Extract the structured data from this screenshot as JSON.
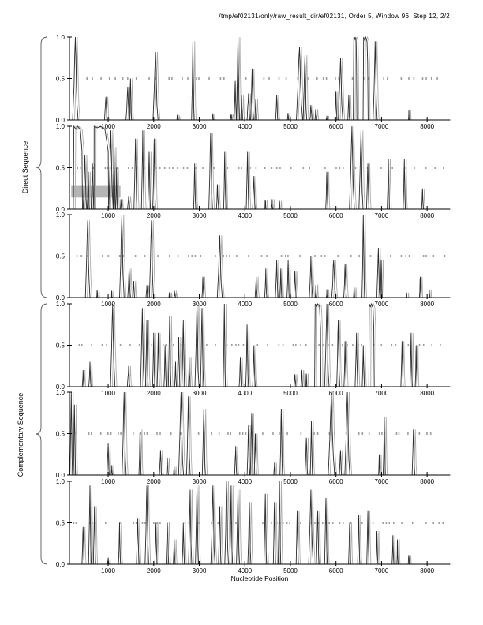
{
  "figure": {
    "title": "/tmp/ef02131/only/raw_result_dir/ef02131, Order 5, Window 96, Step 12, 2/2",
    "x_axis_label": "Nucleotide Position",
    "group_labels": [
      "Direct Sequence",
      "Complementary Sequence"
    ]
  },
  "chart_data": {
    "type": "line",
    "title": "/tmp/ef02131/only/raw_result_dir/ef02131, Order 5, Window 96, Step 12, 2/2",
    "xlabel": "Nucleotide Position",
    "ylabel": "",
    "xlim": [
      150,
      8500
    ],
    "ylim": [
      0,
      1
    ],
    "x_ticks": [
      1000,
      2000,
      3000,
      4000,
      5000,
      6000,
      7000,
      8000
    ],
    "y_ticks": [
      "1.0",
      "0.5",
      "0.0"
    ],
    "grid": false,
    "legend": "none",
    "midline": {
      "y": 0.5,
      "style": "short gray dashes",
      "color": "#9e9e9e"
    },
    "colors": {
      "curve": "#2b2b2b",
      "curve_echo": "#aeaeae",
      "spine": "#000000",
      "annotation_box": "#b5b5b5"
    },
    "annotations": [
      {
        "type": "box",
        "subplot_index": 1,
        "x0": 190,
        "x1": 1270,
        "y0": 0.14,
        "y1": 0.28,
        "fill": "#b5b5b5"
      }
    ],
    "note": "peaks are [center_nt, height_0to1, halfwidth_nt, plateau_flag(optional)]",
    "subplots": [
      {
        "name": "direct-frame-1",
        "group": "Direct Sequence",
        "seed": 11,
        "peaks": [
          [
            280,
            1.0,
            60
          ],
          [
            950,
            0.28,
            30
          ],
          [
            1430,
            0.4,
            40
          ],
          [
            1490,
            0.5,
            25
          ],
          [
            2040,
            0.82,
            55
          ],
          [
            2520,
            0.05,
            20
          ],
          [
            2860,
            0.95,
            30
          ],
          [
            3300,
            0.08,
            15
          ],
          [
            3700,
            0.06,
            15
          ],
          [
            3790,
            0.47,
            25
          ],
          [
            3850,
            1.0,
            35
          ],
          [
            3930,
            0.3,
            20
          ],
          [
            4080,
            0.32,
            30
          ],
          [
            4160,
            0.62,
            35
          ],
          [
            4240,
            0.25,
            20
          ],
          [
            4700,
            0.3,
            25
          ],
          [
            4950,
            0.06,
            15
          ],
          [
            5200,
            0.88,
            70
          ],
          [
            5320,
            0.78,
            40
          ],
          [
            5450,
            0.18,
            25
          ],
          [
            5560,
            0.12,
            20
          ],
          [
            5800,
            0.05,
            15
          ],
          [
            6000,
            0.35,
            25
          ],
          [
            6100,
            0.75,
            50
          ],
          [
            6280,
            0.3,
            20
          ],
          [
            6420,
            1.0,
            40,
            1
          ],
          [
            6650,
            1.0,
            55,
            1
          ],
          [
            6860,
            0.95,
            45
          ],
          [
            7600,
            0.12,
            10
          ]
        ]
      },
      {
        "name": "direct-frame-2",
        "group": "Direct Sequence",
        "seed": 22,
        "peaks": [
          [
            335,
            1.0,
            100,
            1
          ],
          [
            490,
            0.65,
            40
          ],
          [
            565,
            0.45,
            25
          ],
          [
            655,
            0.55,
            30
          ],
          [
            830,
            1.0,
            180,
            1
          ],
          [
            1060,
            0.95,
            50
          ],
          [
            1130,
            0.75,
            30
          ],
          [
            1185,
            0.5,
            20
          ],
          [
            1280,
            0.12,
            20
          ],
          [
            1450,
            0.15,
            25
          ],
          [
            1600,
            0.85,
            35
          ],
          [
            1760,
            0.95,
            30
          ],
          [
            1900,
            0.7,
            30
          ],
          [
            2010,
            0.85,
            30
          ],
          [
            2900,
            0.55,
            25
          ],
          [
            3250,
            0.92,
            40
          ],
          [
            3400,
            0.3,
            25
          ],
          [
            3560,
            0.7,
            25
          ],
          [
            4060,
            0.7,
            30
          ],
          [
            4200,
            0.4,
            30
          ],
          [
            4450,
            0.1,
            15
          ],
          [
            4600,
            0.12,
            15
          ],
          [
            4760,
            0.1,
            15
          ],
          [
            5800,
            0.45,
            25
          ],
          [
            6350,
            1.0,
            55
          ],
          [
            6550,
            0.95,
            45
          ],
          [
            6700,
            0.55,
            30
          ],
          [
            7150,
            0.6,
            25
          ],
          [
            7500,
            0.6,
            25
          ],
          [
            7900,
            0.25,
            20
          ]
        ]
      },
      {
        "name": "direct-frame-3",
        "group": "Direct Sequence",
        "seed": 33,
        "peaks": [
          [
            550,
            0.93,
            50
          ],
          [
            760,
            0.08,
            15
          ],
          [
            1080,
            0.07,
            15
          ],
          [
            1300,
            1.0,
            50
          ],
          [
            1460,
            0.35,
            30
          ],
          [
            1560,
            0.2,
            20
          ],
          [
            1850,
            0.15,
            20
          ],
          [
            1950,
            0.93,
            45
          ],
          [
            2350,
            0.05,
            15
          ],
          [
            2460,
            0.06,
            15
          ],
          [
            3080,
            0.25,
            20
          ],
          [
            3450,
            0.75,
            55
          ],
          [
            4250,
            0.25,
            25
          ],
          [
            4460,
            0.35,
            25
          ],
          [
            4700,
            0.45,
            30
          ],
          [
            4790,
            0.35,
            20
          ],
          [
            4950,
            0.45,
            25
          ],
          [
            5100,
            0.32,
            25
          ],
          [
            5450,
            0.5,
            35
          ],
          [
            5560,
            0.15,
            15
          ],
          [
            5800,
            0.1,
            15
          ],
          [
            5950,
            0.45,
            45
          ],
          [
            6200,
            0.4,
            30
          ],
          [
            6400,
            0.12,
            15
          ],
          [
            6600,
            1.0,
            30
          ],
          [
            6930,
            0.6,
            35
          ],
          [
            6995,
            0.45,
            20
          ],
          [
            7550,
            0.05,
            10
          ],
          [
            7850,
            0.25,
            20
          ],
          [
            8050,
            0.08,
            10
          ]
        ]
      },
      {
        "name": "complementary-frame-1",
        "group": "Complementary Sequence",
        "seed": 44,
        "peaks": [
          [
            450,
            0.2,
            20
          ],
          [
            600,
            0.3,
            25
          ],
          [
            1100,
            1.0,
            50
          ],
          [
            1450,
            0.25,
            30
          ],
          [
            1750,
            0.95,
            40
          ],
          [
            1850,
            0.8,
            30
          ],
          [
            2000,
            0.65,
            25
          ],
          [
            2100,
            0.65,
            25
          ],
          [
            2250,
            0.5,
            25
          ],
          [
            2350,
            0.85,
            30
          ],
          [
            2480,
            0.3,
            20
          ],
          [
            2550,
            0.6,
            25
          ],
          [
            2650,
            0.8,
            30
          ],
          [
            2780,
            0.35,
            20
          ],
          [
            2950,
            1.0,
            45
          ],
          [
            3060,
            0.95,
            35
          ],
          [
            3550,
            1.0,
            25
          ],
          [
            3900,
            0.35,
            25
          ],
          [
            4050,
            0.75,
            30
          ],
          [
            4200,
            0.5,
            30
          ],
          [
            5100,
            0.15,
            20
          ],
          [
            5250,
            0.2,
            20
          ],
          [
            5350,
            0.15,
            15
          ],
          [
            5600,
            1.0,
            70,
            1
          ],
          [
            5800,
            1.0,
            50
          ],
          [
            6050,
            0.8,
            35
          ],
          [
            6200,
            0.55,
            25
          ],
          [
            6450,
            0.65,
            30
          ],
          [
            6600,
            0.5,
            25
          ],
          [
            6780,
            1.0,
            60,
            1
          ],
          [
            7450,
            0.55,
            25
          ],
          [
            7650,
            0.65,
            25
          ],
          [
            7760,
            0.5,
            20
          ]
        ]
      },
      {
        "name": "complementary-frame-2",
        "group": "Complementary Sequence",
        "seed": 55,
        "peaks": [
          [
            190,
            1.0,
            30
          ],
          [
            260,
            0.85,
            25
          ],
          [
            1000,
            0.38,
            25
          ],
          [
            1080,
            0.12,
            15
          ],
          [
            1350,
            1.0,
            45
          ],
          [
            1700,
            0.55,
            25
          ],
          [
            2150,
            0.3,
            25
          ],
          [
            2300,
            0.2,
            20
          ],
          [
            2450,
            0.1,
            15
          ],
          [
            2600,
            1.0,
            55
          ],
          [
            2760,
            0.95,
            40
          ],
          [
            3100,
            0.8,
            35
          ],
          [
            3800,
            0.35,
            25
          ],
          [
            4080,
            0.6,
            30
          ],
          [
            4150,
            0.75,
            30
          ],
          [
            4230,
            0.5,
            25
          ],
          [
            4650,
            0.15,
            15
          ],
          [
            4800,
            0.8,
            30
          ],
          [
            5350,
            0.45,
            30
          ],
          [
            5460,
            0.65,
            25
          ],
          [
            5900,
            1.0,
            70
          ],
          [
            6100,
            0.3,
            25
          ],
          [
            6250,
            1.0,
            55
          ],
          [
            6950,
            0.25,
            15
          ],
          [
            7060,
            0.7,
            25
          ],
          [
            7700,
            0.55,
            30
          ]
        ]
      },
      {
        "name": "complementary-frame-3",
        "group": "Complementary Sequence",
        "seed": 66,
        "peaks": [
          [
            450,
            0.45,
            25
          ],
          [
            600,
            0.95,
            30
          ],
          [
            700,
            0.7,
            25
          ],
          [
            1000,
            0.08,
            15
          ],
          [
            1250,
            0.5,
            25
          ],
          [
            1650,
            0.55,
            30
          ],
          [
            1850,
            0.95,
            40
          ],
          [
            2050,
            0.5,
            25
          ],
          [
            2300,
            0.5,
            30
          ],
          [
            2450,
            0.3,
            20
          ],
          [
            2650,
            0.5,
            25
          ],
          [
            2800,
            0.9,
            35
          ],
          [
            2950,
            0.95,
            35
          ],
          [
            3300,
            0.95,
            45
          ],
          [
            3450,
            0.7,
            30
          ],
          [
            3600,
            1.0,
            40
          ],
          [
            3700,
            0.95,
            30
          ],
          [
            3850,
            0.9,
            35
          ],
          [
            4100,
            0.75,
            35
          ],
          [
            4450,
            0.85,
            30
          ],
          [
            4650,
            0.75,
            25
          ],
          [
            4760,
            1.0,
            30
          ],
          [
            5150,
            0.65,
            25
          ],
          [
            5450,
            0.9,
            50
          ],
          [
            5600,
            0.65,
            30
          ],
          [
            5780,
            0.8,
            30
          ],
          [
            6300,
            0.5,
            25
          ],
          [
            6500,
            0.6,
            25
          ],
          [
            6700,
            0.65,
            25
          ],
          [
            6900,
            0.4,
            20
          ],
          [
            7250,
            0.35,
            20
          ],
          [
            7350,
            0.3,
            15
          ],
          [
            7600,
            0.1,
            15
          ]
        ]
      }
    ]
  }
}
